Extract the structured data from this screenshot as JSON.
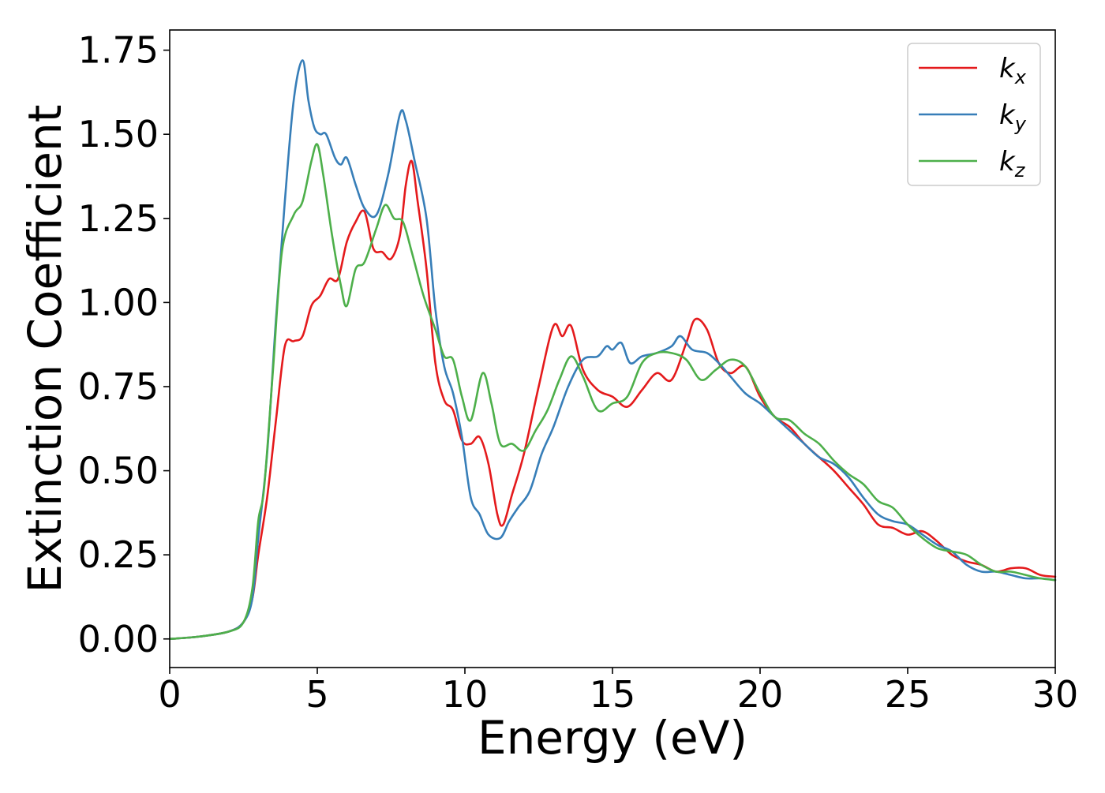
{
  "chart_data": {
    "type": "line",
    "title": "",
    "xlabel": "Energy (eV)",
    "ylabel": "Extinction Coefficient",
    "xlim": [
      0,
      30
    ],
    "ylim": [
      -0.085,
      1.81
    ],
    "xticks": [
      0,
      5,
      10,
      15,
      20,
      25,
      30
    ],
    "yticks": [
      0.0,
      0.25,
      0.5,
      0.75,
      1.0,
      1.25,
      1.5,
      1.75
    ],
    "xtick_labels": [
      "0",
      "5",
      "10",
      "15",
      "20",
      "25",
      "30"
    ],
    "ytick_labels": [
      "0.00",
      "0.25",
      "0.50",
      "0.75",
      "1.00",
      "1.25",
      "1.50",
      "1.75"
    ],
    "grid": false,
    "legend_position": "top-right",
    "series": [
      {
        "name": "k_x",
        "label_base": "k",
        "label_sub": "x",
        "color": "#e41a1c",
        "points": [
          [
            0,
            0.0
          ],
          [
            1,
            0.007
          ],
          [
            2,
            0.022
          ],
          [
            2.5,
            0.05
          ],
          [
            2.8,
            0.12
          ],
          [
            3.0,
            0.25
          ],
          [
            3.3,
            0.42
          ],
          [
            3.6,
            0.65
          ],
          [
            3.9,
            0.87
          ],
          [
            4.2,
            0.885
          ],
          [
            4.5,
            0.9
          ],
          [
            4.8,
            0.99
          ],
          [
            5.1,
            1.02
          ],
          [
            5.4,
            1.07
          ],
          [
            5.7,
            1.07
          ],
          [
            6.0,
            1.18
          ],
          [
            6.3,
            1.24
          ],
          [
            6.6,
            1.27
          ],
          [
            6.9,
            1.16
          ],
          [
            7.2,
            1.15
          ],
          [
            7.5,
            1.13
          ],
          [
            7.8,
            1.2
          ],
          [
            8.0,
            1.35
          ],
          [
            8.2,
            1.42
          ],
          [
            8.4,
            1.3
          ],
          [
            8.7,
            1.1
          ],
          [
            9.0,
            0.82
          ],
          [
            9.3,
            0.71
          ],
          [
            9.6,
            0.68
          ],
          [
            9.9,
            0.59
          ],
          [
            10.2,
            0.58
          ],
          [
            10.5,
            0.6
          ],
          [
            10.8,
            0.52
          ],
          [
            11.1,
            0.37
          ],
          [
            11.3,
            0.34
          ],
          [
            11.6,
            0.43
          ],
          [
            12.0,
            0.55
          ],
          [
            12.5,
            0.75
          ],
          [
            13.0,
            0.93
          ],
          [
            13.3,
            0.9
          ],
          [
            13.6,
            0.93
          ],
          [
            14.0,
            0.8
          ],
          [
            14.5,
            0.74
          ],
          [
            15.0,
            0.72
          ],
          [
            15.5,
            0.69
          ],
          [
            16.0,
            0.74
          ],
          [
            16.5,
            0.79
          ],
          [
            17.0,
            0.77
          ],
          [
            17.5,
            0.88
          ],
          [
            17.8,
            0.95
          ],
          [
            18.2,
            0.92
          ],
          [
            18.6,
            0.82
          ],
          [
            19.0,
            0.79
          ],
          [
            19.5,
            0.81
          ],
          [
            20.0,
            0.72
          ],
          [
            20.5,
            0.66
          ],
          [
            21.0,
            0.63
          ],
          [
            21.5,
            0.58
          ],
          [
            22.0,
            0.54
          ],
          [
            22.5,
            0.5
          ],
          [
            23.0,
            0.45
          ],
          [
            23.5,
            0.4
          ],
          [
            24.0,
            0.34
          ],
          [
            24.5,
            0.33
          ],
          [
            25.0,
            0.31
          ],
          [
            25.5,
            0.32
          ],
          [
            26.0,
            0.29
          ],
          [
            26.5,
            0.25
          ],
          [
            27.0,
            0.23
          ],
          [
            27.5,
            0.22
          ],
          [
            28.0,
            0.2
          ],
          [
            28.5,
            0.21
          ],
          [
            29.0,
            0.21
          ],
          [
            29.5,
            0.19
          ],
          [
            30.0,
            0.185
          ]
        ]
      },
      {
        "name": "k_y",
        "label_base": "k",
        "label_sub": "y",
        "color": "#377eb8",
        "points": [
          [
            0,
            0.0
          ],
          [
            1,
            0.007
          ],
          [
            2,
            0.022
          ],
          [
            2.5,
            0.05
          ],
          [
            2.8,
            0.12
          ],
          [
            3.0,
            0.3
          ],
          [
            3.3,
            0.55
          ],
          [
            3.6,
            0.95
          ],
          [
            3.9,
            1.3
          ],
          [
            4.2,
            1.6
          ],
          [
            4.5,
            1.72
          ],
          [
            4.7,
            1.6
          ],
          [
            4.9,
            1.52
          ],
          [
            5.1,
            1.5
          ],
          [
            5.3,
            1.5
          ],
          [
            5.6,
            1.43
          ],
          [
            5.8,
            1.41
          ],
          [
            6.0,
            1.43
          ],
          [
            6.3,
            1.35
          ],
          [
            6.6,
            1.28
          ],
          [
            7.0,
            1.26
          ],
          [
            7.4,
            1.38
          ],
          [
            7.8,
            1.56
          ],
          [
            8.0,
            1.54
          ],
          [
            8.3,
            1.42
          ],
          [
            8.7,
            1.25
          ],
          [
            9.0,
            0.98
          ],
          [
            9.3,
            0.81
          ],
          [
            9.6,
            0.73
          ],
          [
            9.9,
            0.6
          ],
          [
            10.2,
            0.42
          ],
          [
            10.5,
            0.37
          ],
          [
            10.8,
            0.31
          ],
          [
            11.2,
            0.3
          ],
          [
            11.5,
            0.35
          ],
          [
            11.8,
            0.39
          ],
          [
            12.2,
            0.44
          ],
          [
            12.6,
            0.55
          ],
          [
            13.0,
            0.63
          ],
          [
            13.5,
            0.75
          ],
          [
            14.0,
            0.83
          ],
          [
            14.5,
            0.84
          ],
          [
            14.8,
            0.87
          ],
          [
            15.0,
            0.86
          ],
          [
            15.3,
            0.88
          ],
          [
            15.6,
            0.82
          ],
          [
            16.0,
            0.84
          ],
          [
            16.5,
            0.85
          ],
          [
            17.0,
            0.87
          ],
          [
            17.3,
            0.9
          ],
          [
            17.7,
            0.86
          ],
          [
            18.2,
            0.85
          ],
          [
            18.6,
            0.82
          ],
          [
            19.0,
            0.78
          ],
          [
            19.5,
            0.73
          ],
          [
            20.0,
            0.7
          ],
          [
            20.5,
            0.66
          ],
          [
            21.0,
            0.62
          ],
          [
            21.5,
            0.58
          ],
          [
            22.0,
            0.54
          ],
          [
            22.5,
            0.52
          ],
          [
            23.0,
            0.48
          ],
          [
            23.5,
            0.42
          ],
          [
            24.0,
            0.37
          ],
          [
            24.5,
            0.35
          ],
          [
            25.0,
            0.34
          ],
          [
            25.5,
            0.31
          ],
          [
            26.0,
            0.28
          ],
          [
            26.5,
            0.26
          ],
          [
            27.0,
            0.22
          ],
          [
            27.5,
            0.2
          ],
          [
            28.0,
            0.2
          ],
          [
            28.5,
            0.19
          ],
          [
            29.0,
            0.18
          ],
          [
            29.5,
            0.18
          ],
          [
            30.0,
            0.175
          ]
        ]
      },
      {
        "name": "k_z",
        "label_base": "k",
        "label_sub": "z",
        "color": "#4daf4a",
        "points": [
          [
            0,
            0.0
          ],
          [
            1,
            0.007
          ],
          [
            2,
            0.022
          ],
          [
            2.5,
            0.05
          ],
          [
            2.8,
            0.15
          ],
          [
            3.0,
            0.35
          ],
          [
            3.2,
            0.45
          ],
          [
            3.5,
            0.8
          ],
          [
            3.8,
            1.15
          ],
          [
            4.2,
            1.26
          ],
          [
            4.5,
            1.3
          ],
          [
            4.8,
            1.42
          ],
          [
            5.0,
            1.47
          ],
          [
            5.2,
            1.38
          ],
          [
            5.5,
            1.2
          ],
          [
            5.8,
            1.05
          ],
          [
            6.0,
            0.99
          ],
          [
            6.3,
            1.1
          ],
          [
            6.6,
            1.12
          ],
          [
            7.0,
            1.22
          ],
          [
            7.3,
            1.29
          ],
          [
            7.6,
            1.25
          ],
          [
            7.9,
            1.24
          ],
          [
            8.2,
            1.15
          ],
          [
            8.6,
            1.02
          ],
          [
            9.0,
            0.92
          ],
          [
            9.3,
            0.84
          ],
          [
            9.6,
            0.83
          ],
          [
            9.9,
            0.72
          ],
          [
            10.2,
            0.65
          ],
          [
            10.6,
            0.79
          ],
          [
            10.9,
            0.7
          ],
          [
            11.2,
            0.58
          ],
          [
            11.6,
            0.58
          ],
          [
            12.0,
            0.56
          ],
          [
            12.4,
            0.62
          ],
          [
            12.8,
            0.68
          ],
          [
            13.2,
            0.77
          ],
          [
            13.6,
            0.84
          ],
          [
            14.0,
            0.78
          ],
          [
            14.5,
            0.68
          ],
          [
            15.0,
            0.7
          ],
          [
            15.5,
            0.72
          ],
          [
            16.0,
            0.82
          ],
          [
            16.5,
            0.85
          ],
          [
            17.0,
            0.85
          ],
          [
            17.5,
            0.83
          ],
          [
            18.0,
            0.77
          ],
          [
            18.5,
            0.8
          ],
          [
            19.0,
            0.83
          ],
          [
            19.5,
            0.81
          ],
          [
            20.0,
            0.73
          ],
          [
            20.5,
            0.66
          ],
          [
            21.0,
            0.65
          ],
          [
            21.5,
            0.61
          ],
          [
            22.0,
            0.58
          ],
          [
            22.5,
            0.53
          ],
          [
            23.0,
            0.49
          ],
          [
            23.5,
            0.46
          ],
          [
            24.0,
            0.41
          ],
          [
            24.5,
            0.39
          ],
          [
            25.0,
            0.34
          ],
          [
            25.5,
            0.3
          ],
          [
            26.0,
            0.27
          ],
          [
            26.5,
            0.26
          ],
          [
            27.0,
            0.25
          ],
          [
            27.5,
            0.22
          ],
          [
            28.0,
            0.2
          ],
          [
            28.5,
            0.2
          ],
          [
            29.0,
            0.19
          ],
          [
            29.5,
            0.18
          ],
          [
            30.0,
            0.175
          ]
        ]
      }
    ]
  }
}
